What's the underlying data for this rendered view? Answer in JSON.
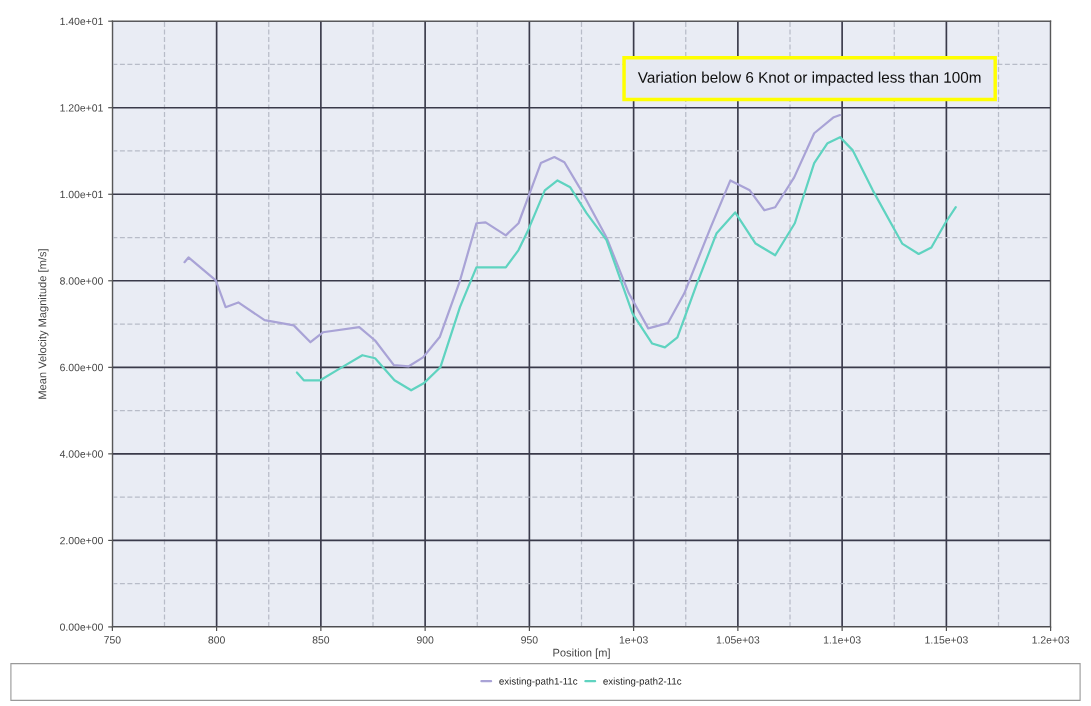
{
  "chart_data": {
    "type": "line",
    "xlabel": "Position [m]",
    "ylabel": "Mean Velocity Magnitude [m/s]",
    "xlim": [
      750,
      1200
    ],
    "ylim": [
      0,
      14
    ],
    "xticks": [
      750,
      800,
      850,
      900,
      950,
      {
        "value": 1000,
        "label": "1e+03"
      },
      {
        "value": 1050,
        "label": "1.05e+03"
      },
      {
        "value": 1100,
        "label": "1.1e+03"
      },
      {
        "value": 1150,
        "label": "1.15e+03"
      },
      {
        "value": 1200,
        "label": "1.2e+03"
      }
    ],
    "yticks": [
      {
        "value": 0,
        "label": "0.00e+00"
      },
      {
        "value": 2,
        "label": "2.00e+00"
      },
      {
        "value": 4,
        "label": "4.00e+00"
      },
      {
        "value": 6,
        "label": "6.00e+00"
      },
      {
        "value": 8,
        "label": "8.00e+00"
      },
      {
        "value": 10,
        "label": "1.00e+01"
      },
      {
        "value": 12,
        "label": "1.20e+01"
      },
      {
        "value": 14,
        "label": "1.40e+01"
      }
    ],
    "grid": true,
    "legend": "bottom",
    "marker": "none",
    "line_style": "solid",
    "annotations": [
      "Variation below 6 Knot or impacted less than 100m"
    ],
    "series": [
      {
        "name": "existing-path1-11c",
        "color": "#a9a3d6",
        "x": [
          784.6,
          786.5,
          799.6,
          804.3,
          810.4,
          823,
          837,
          845,
          851,
          868.4,
          876,
          885,
          892,
          899,
          907,
          916.7,
          924.6,
          929,
          938.7,
          944.8,
          949.4,
          955.5,
          962,
          966.8,
          974,
          987,
          997.7,
          1007,
          1016.4,
          1024.3,
          1037,
          1046.4,
          1055.7,
          1062.7,
          1067.9,
          1077,
          1086.6,
          1096,
          1099
        ],
        "values": [
          8.43,
          8.54,
          8.01,
          7.39,
          7.5,
          7.09,
          6.97,
          6.58,
          6.81,
          6.93,
          6.62,
          6.05,
          6.02,
          6.23,
          6.7,
          8.0,
          9.33,
          9.35,
          9.05,
          9.33,
          9.93,
          10.72,
          10.86,
          10.74,
          10.16,
          9.0,
          7.71,
          6.9,
          7.02,
          7.71,
          9.24,
          10.32,
          10.09,
          9.63,
          9.7,
          10.39,
          11.41,
          11.78,
          11.83
        ]
      },
      {
        "name": "existing-path2-11c",
        "color": "#5fd3c0",
        "x": [
          838.5,
          841.8,
          849.7,
          859,
          869.9,
          876,
          885.3,
          893.3,
          899.3,
          907.3,
          916.7,
          924.6,
          932,
          938.7,
          944.8,
          949.4,
          957.4,
          963.5,
          969.6,
          977.5,
          987,
          999.5,
          1008.9,
          1015,
          1021,
          1030.4,
          1039.8,
          1048.7,
          1058.5,
          1067.9,
          1077.3,
          1086.6,
          1093,
          1099,
          1105,
          1114.7,
          1128.8,
          1136.7,
          1142.8,
          1149.4,
          1154.5
        ],
        "values": [
          5.88,
          5.7,
          5.7,
          5.97,
          6.28,
          6.21,
          5.7,
          5.47,
          5.63,
          6.0,
          7.39,
          8.31,
          8.31,
          8.31,
          8.71,
          9.17,
          10.09,
          10.32,
          10.16,
          9.56,
          8.94,
          7.24,
          6.55,
          6.46,
          6.69,
          7.94,
          9.1,
          9.58,
          8.86,
          8.59,
          9.33,
          10.72,
          11.18,
          11.32,
          11.02,
          10.09,
          8.86,
          8.62,
          8.77,
          9.33,
          9.7
        ]
      }
    ]
  }
}
